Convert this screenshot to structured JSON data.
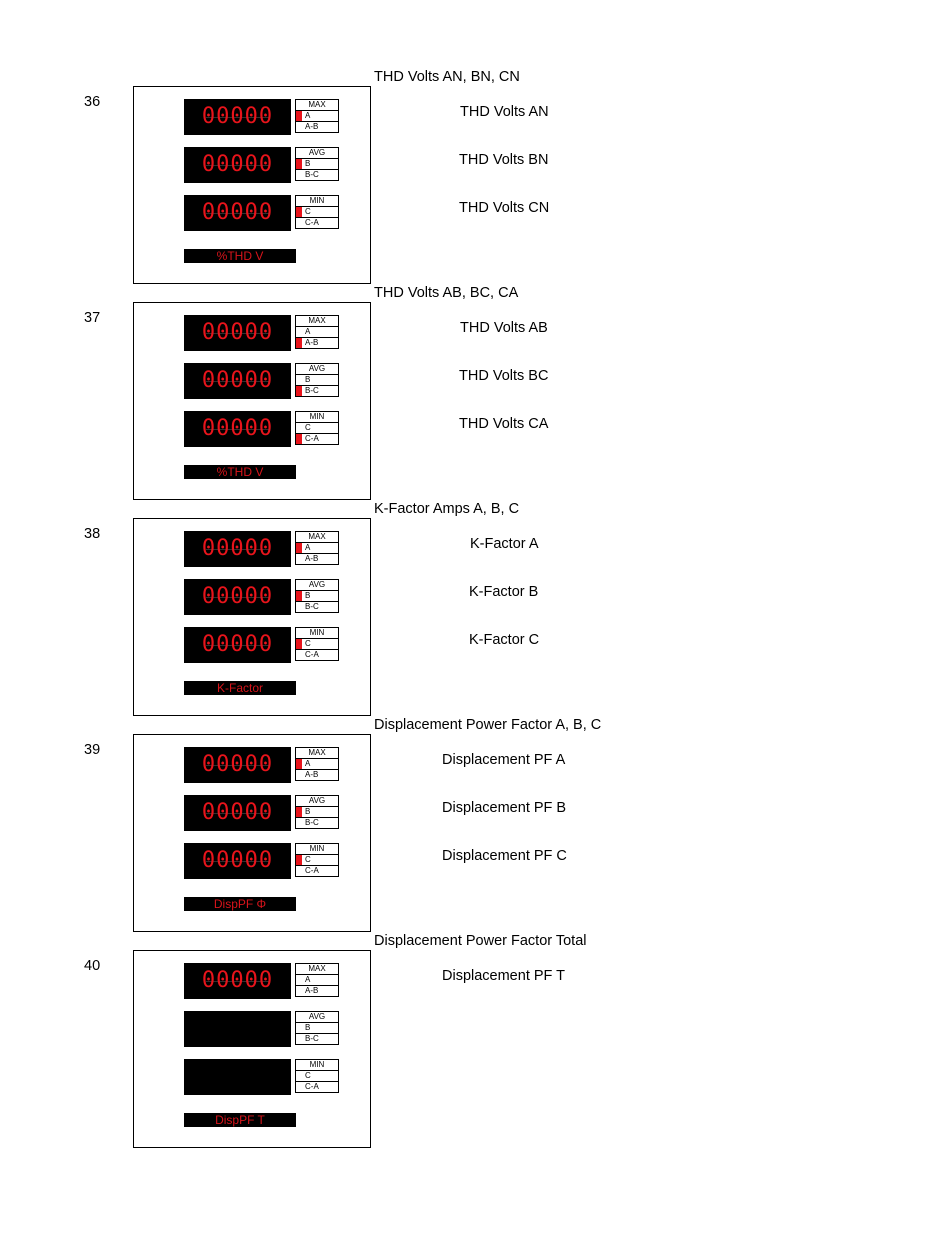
{
  "accent_color": "#e8141b",
  "selector_labels": {
    "top": [
      "MAX",
      "A",
      "A-B"
    ],
    "mid": [
      "AVG",
      "B",
      "B-C"
    ],
    "bot": [
      "MIN",
      "C",
      "C-A"
    ]
  },
  "sections": [
    {
      "number": "36",
      "title": "THD Volts AN, BN, CN",
      "display_label": "%THD V",
      "rows": [
        {
          "digits": "00000",
          "description": "THD Volts AN",
          "highlight": "A"
        },
        {
          "digits": "00000",
          "description": "THD Volts BN",
          "highlight": "B"
        },
        {
          "digits": "00000",
          "description": "THD Volts CN",
          "highlight": "C"
        }
      ]
    },
    {
      "number": "37",
      "title": "THD Volts AB, BC, CA",
      "display_label": "%THD V",
      "rows": [
        {
          "digits": "00000",
          "description": "THD Volts AB",
          "highlight": "A-B"
        },
        {
          "digits": "00000",
          "description": "THD Volts BC",
          "highlight": "B-C"
        },
        {
          "digits": "00000",
          "description": "THD Volts CA",
          "highlight": "C-A"
        }
      ]
    },
    {
      "number": "38",
      "title": "K-Factor Amps A, B, C",
      "display_label": "K-Factor",
      "rows": [
        {
          "digits": "00000",
          "description": "K-Factor A",
          "highlight": "A"
        },
        {
          "digits": "00000",
          "description": "K-Factor B",
          "highlight": "B"
        },
        {
          "digits": "00000",
          "description": "K-Factor C",
          "highlight": "C"
        }
      ]
    },
    {
      "number": "39",
      "title": "Displacement Power Factor A, B, C",
      "display_label": "DispPF Φ",
      "rows": [
        {
          "digits": "00000",
          "description": "Displacement PF A",
          "highlight": "A"
        },
        {
          "digits": "00000",
          "description": "Displacement PF B",
          "highlight": "B"
        },
        {
          "digits": "00000",
          "description": "Displacement PF C",
          "highlight": "C"
        }
      ]
    },
    {
      "number": "40",
      "title": "Displacement Power Factor Total",
      "display_label": "DispPF T",
      "rows": [
        {
          "digits": "00000",
          "description": "Displacement PF T",
          "highlight": ""
        },
        {
          "digits": "",
          "description": "",
          "highlight": ""
        },
        {
          "digits": "",
          "description": "",
          "highlight": ""
        }
      ]
    }
  ]
}
